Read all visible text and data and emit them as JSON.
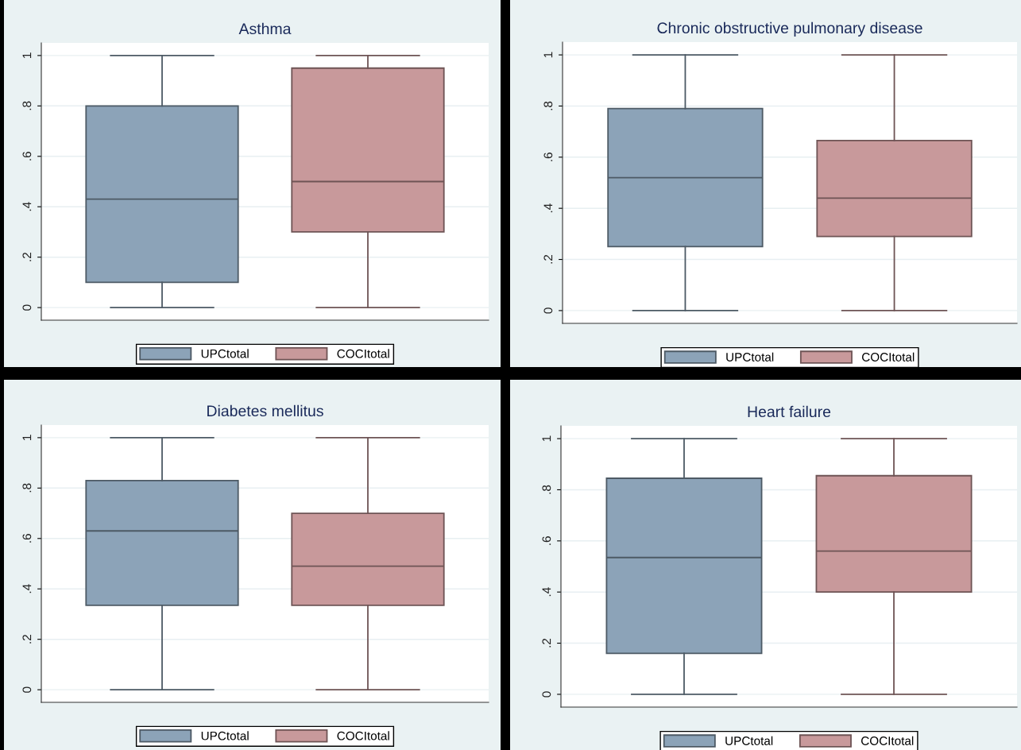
{
  "chart_data": [
    {
      "type": "box",
      "title": "Asthma",
      "categories": [
        null
      ],
      "ylim": [
        -0.05,
        1.05
      ],
      "yticks": [
        {
          "value": 0,
          "label": "0"
        },
        {
          "value": 0.2,
          "label": ".2"
        },
        {
          "value": 0.4,
          "label": ".4"
        },
        {
          "value": 0.6,
          "label": ".6"
        },
        {
          "value": 0.8,
          "label": ".8"
        },
        {
          "value": 1,
          "label": "1"
        }
      ],
      "grid": "y",
      "legend": "bottom",
      "series": [
        {
          "name": "UPCtotal",
          "color": "#8ca3b8",
          "boxes": [
            {
              "low": 0,
              "q1": 0.1,
              "median": 0.43,
              "q3": 0.8,
              "high": 1
            }
          ]
        },
        {
          "name": "COCItotal",
          "color": "#c8999b",
          "boxes": [
            {
              "low": 0,
              "q1": 0.3,
              "median": 0.5,
              "q3": 0.95,
              "high": 1
            }
          ]
        }
      ]
    },
    {
      "type": "box",
      "title": "Chronic obstructive pulmonary disease",
      "categories": [
        null
      ],
      "ylim": [
        -0.05,
        1.05
      ],
      "yticks": [
        {
          "value": 0,
          "label": "0"
        },
        {
          "value": 0.2,
          "label": ".2"
        },
        {
          "value": 0.4,
          "label": ".4"
        },
        {
          "value": 0.6,
          "label": ".6"
        },
        {
          "value": 0.8,
          "label": ".8"
        },
        {
          "value": 1,
          "label": "1"
        }
      ],
      "grid": "y",
      "legend": "bottom",
      "series": [
        {
          "name": "UPCtotal",
          "color": "#8ca3b8",
          "boxes": [
            {
              "low": 0,
              "q1": 0.25,
              "median": 0.52,
              "q3": 0.79,
              "high": 1
            }
          ]
        },
        {
          "name": "COCItotal",
          "color": "#c8999b",
          "boxes": [
            {
              "low": 0,
              "q1": 0.29,
              "median": 0.44,
              "q3": 0.665,
              "high": 1
            }
          ]
        }
      ]
    },
    {
      "type": "box",
      "title": "Diabetes mellitus",
      "categories": [
        null
      ],
      "ylim": [
        -0.05,
        1.05
      ],
      "yticks": [
        {
          "value": 0,
          "label": "0"
        },
        {
          "value": 0.2,
          "label": ".2"
        },
        {
          "value": 0.4,
          "label": ".4"
        },
        {
          "value": 0.6,
          "label": ".6"
        },
        {
          "value": 0.8,
          "label": ".8"
        },
        {
          "value": 1,
          "label": "1"
        }
      ],
      "grid": "y",
      "legend": "bottom",
      "series": [
        {
          "name": "UPCtotal",
          "color": "#8ca3b8",
          "boxes": [
            {
              "low": 0,
              "q1": 0.335,
              "median": 0.63,
              "q3": 0.83,
              "high": 1
            }
          ]
        },
        {
          "name": "COCItotal",
          "color": "#c8999b",
          "boxes": [
            {
              "low": 0,
              "q1": 0.335,
              "median": 0.49,
              "q3": 0.7,
              "high": 1
            }
          ]
        }
      ]
    },
    {
      "type": "box",
      "title": "Heart failure",
      "categories": [
        null
      ],
      "ylim": [
        -0.05,
        1.05
      ],
      "yticks": [
        {
          "value": 0,
          "label": "0"
        },
        {
          "value": 0.2,
          "label": ".2"
        },
        {
          "value": 0.4,
          "label": ".4"
        },
        {
          "value": 0.6,
          "label": ".6"
        },
        {
          "value": 0.8,
          "label": ".8"
        },
        {
          "value": 1,
          "label": "1"
        }
      ],
      "grid": "y",
      "legend": "bottom",
      "series": [
        {
          "name": "UPCtotal",
          "color": "#8ca3b8",
          "boxes": [
            {
              "low": 0,
              "q1": 0.16,
              "median": 0.535,
              "q3": 0.845,
              "high": 1
            }
          ]
        },
        {
          "name": "COCItotal",
          "color": "#c8999b",
          "boxes": [
            {
              "low": 0,
              "q1": 0.4,
              "median": 0.56,
              "q3": 0.855,
              "high": 1
            }
          ]
        }
      ]
    }
  ]
}
